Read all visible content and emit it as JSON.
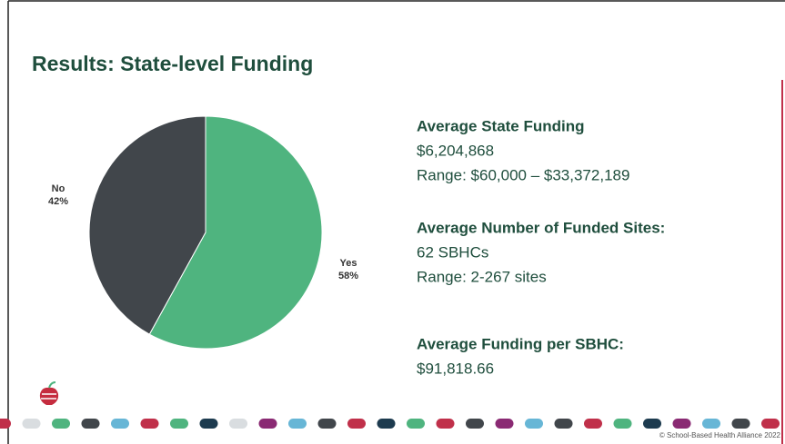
{
  "title": "Results: State-level Funding",
  "chart_data": {
    "type": "pie",
    "categories": [
      "Yes",
      "No"
    ],
    "values": [
      58,
      42
    ],
    "value_labels": [
      "58%",
      "42%"
    ],
    "colors": [
      "#4fb47f",
      "#41464b"
    ],
    "start_angle": 0,
    "direction": "clockwise"
  },
  "stats": [
    {
      "heading": "Average State Funding",
      "lines": [
        "$6,204,868",
        "Range: $60,000 – $33,372,189"
      ]
    },
    {
      "heading": "Average Number of Funded Sites:",
      "lines": [
        "62 SBHCs",
        "Range: 2-267 sites"
      ]
    },
    {
      "heading": "Average Funding per SBHC:",
      "lines": [
        "$91,818.66"
      ]
    }
  ],
  "footer": "© School-Based Health Alliance 2022"
}
